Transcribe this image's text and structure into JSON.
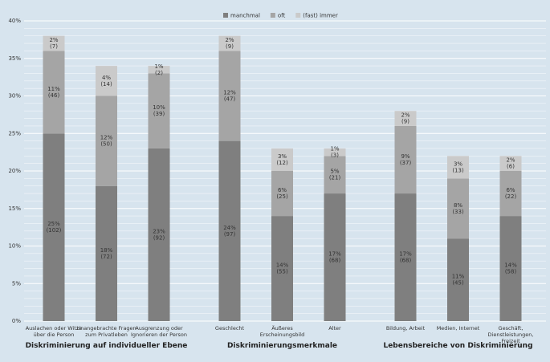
{
  "chart_data": {
    "type": "stacked-bar",
    "groups": [
      {
        "label": "Diskriminierung auf individueller Ebene",
        "categories": [
          "Auslachen oder Witze\nüber die Person",
          "Unangebrachte Fragen\nzum Privatleben",
          "Ausgrenzung oder\nIgnorieren der Person"
        ]
      },
      {
        "label": "Diskriminierungsmerkmale",
        "categories": [
          "Geschlecht",
          "Äußeres\nErscheinungsbild",
          "Alter"
        ]
      },
      {
        "label": "Lebensbereiche von Diskriminierung",
        "categories": [
          "Bildung, Arbeit",
          "Medien, Internet",
          "Geschäft,\nDienstleistungen,\nFreizeit"
        ]
      }
    ],
    "series": [
      {
        "name": "manchmal",
        "color": "#7f7f7f",
        "values": [
          25,
          18,
          23,
          24,
          14,
          17,
          17,
          11,
          14
        ],
        "value_labels": [
          "25%",
          "18%",
          "23%",
          "24%",
          "14%",
          "17%",
          "17%",
          "11%",
          "14%"
        ],
        "count_labels": [
          "(102)",
          "(72)",
          "(92)",
          "(97)",
          "(55)",
          "(68)",
          "(68)",
          "(45)",
          "(58)"
        ]
      },
      {
        "name": "oft",
        "color": "#a5a5a5",
        "values": [
          11,
          12,
          10,
          12,
          6,
          5,
          9,
          8,
          6
        ],
        "value_labels": [
          "11%",
          "12%",
          "10%",
          "12%",
          "6%",
          "5%",
          "9%",
          "8%",
          "6%"
        ],
        "count_labels": [
          "(46)",
          "(50)",
          "(39)",
          "(47)",
          "(25)",
          "(21)",
          "(37)",
          "(33)",
          "(22)"
        ]
      },
      {
        "name": "(fast) immer",
        "color": "#cacaca",
        "values": [
          2,
          4,
          1,
          2,
          3,
          1,
          2,
          3,
          2
        ],
        "value_labels": [
          "2%",
          "4%",
          "1%",
          "2%",
          "3%",
          "1%",
          "2%",
          "3%",
          "2%"
        ],
        "count_labels": [
          "(7)",
          "(14)",
          "(2)",
          "(9)",
          "(12)",
          "(3)",
          "(9)",
          "(13)",
          "(6)"
        ]
      }
    ],
    "ylim": [
      0,
      40
    ],
    "yticks": [
      {
        "value": 0,
        "label": "0%"
      },
      {
        "value": 5,
        "label": "5%"
      },
      {
        "value": 10,
        "label": "10%"
      },
      {
        "value": 15,
        "label": "15%"
      },
      {
        "value": 20,
        "label": "20%"
      },
      {
        "value": 25,
        "label": "25%"
      },
      {
        "value": 30,
        "label": "30%"
      },
      {
        "value": 35,
        "label": "35%"
      },
      {
        "value": 40,
        "label": "40%"
      }
    ],
    "grid": true,
    "legend": "top"
  }
}
